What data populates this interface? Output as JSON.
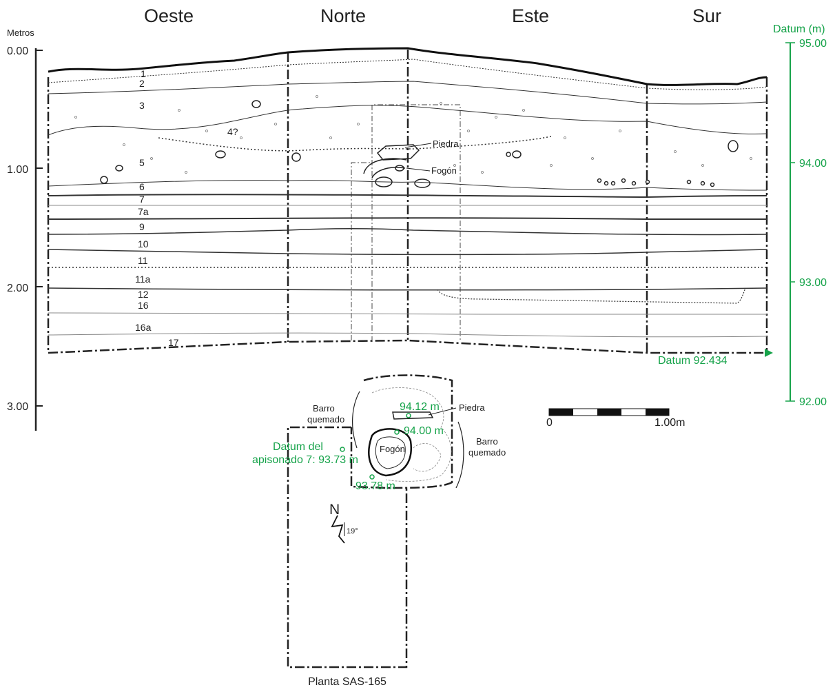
{
  "directions": [
    "Oeste",
    "Norte",
    "Este",
    "Sur"
  ],
  "left_axis": {
    "label": "Metros",
    "ticks": [
      "0.00",
      "1.00",
      "2.00",
      "3.00"
    ]
  },
  "right_axis": {
    "label": "Datum (m)",
    "ticks": [
      "95.00",
      "94.00",
      "93.00",
      "92.00"
    ]
  },
  "layers": [
    "1",
    "2",
    "3",
    "4?",
    "5",
    "6",
    "7",
    "7a",
    "9",
    "10",
    "11",
    "11a",
    "12",
    "16",
    "16a",
    "17"
  ],
  "section_labels": {
    "piedra": "Piedra",
    "fogon": "Fogón",
    "datum": "Datum 92.434"
  },
  "plan": {
    "barro_left": [
      "Barro",
      "quemado"
    ],
    "barro_right": [
      "Barro",
      "quemado"
    ],
    "piedra": "Piedra",
    "fogon": "Fogón",
    "elev_1": "94.12 m",
    "elev_2": "94.00 m",
    "elev_3": "93.78 m",
    "datum_apisonado": [
      "Datum del",
      "apisonado 7: 93.73 m"
    ],
    "north": "N",
    "angle": "19°",
    "title": "Planta SAS-165"
  },
  "scale": {
    "start": "0",
    "end": "1.00m"
  },
  "colors": {
    "ink": "#222222",
    "accent": "#16a34a",
    "fill": "#ffffff"
  }
}
